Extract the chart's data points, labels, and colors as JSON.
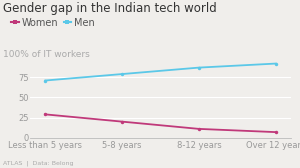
{
  "title": "Gender gap in the Indian tech world",
  "ylabel": "100% of IT workers",
  "categories": [
    "Less than 5 years",
    "5-8 years",
    "8-12 years",
    "Over 12 years"
  ],
  "women_values": [
    29,
    20,
    11,
    7
  ],
  "men_values": [
    71,
    79,
    87,
    92
  ],
  "women_color": "#c0397a",
  "men_color": "#5bc8e8",
  "background_color": "#f0eeeb",
  "ylim": [
    0,
    100
  ],
  "yticks": [
    0,
    25,
    50,
    75
  ],
  "footer": "ATLAS  |  Data: Belong",
  "title_fontsize": 8.5,
  "legend_fontsize": 7,
  "tick_fontsize": 6,
  "ylabel_fontsize": 6.5,
  "footer_fontsize": 4.5
}
